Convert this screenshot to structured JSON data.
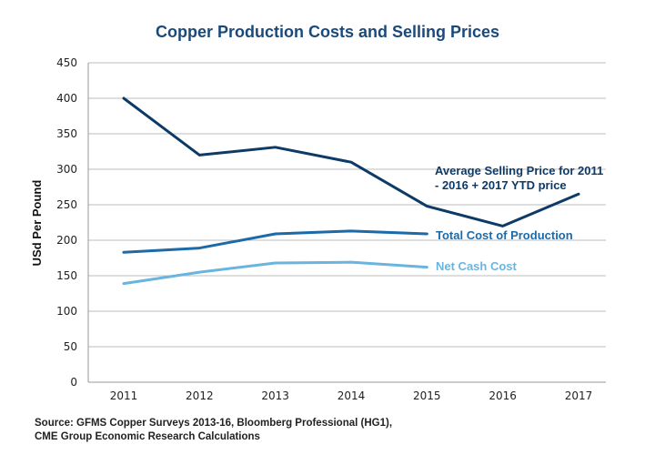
{
  "chart_data": {
    "type": "line",
    "title": "Copper Production Costs and Selling Prices",
    "xlabel": "",
    "ylabel": "USd Per Pound",
    "x": [
      "2011",
      "2012",
      "2013",
      "2014",
      "2015",
      "2016",
      "2017"
    ],
    "ylim": [
      0,
      450
    ],
    "yticks": [
      0,
      50,
      100,
      150,
      200,
      250,
      300,
      350,
      400,
      450
    ],
    "grid": true,
    "legend": "inline-labels",
    "series": [
      {
        "name": "Average Selling Price for 2011 - 2016 + 2017 YTD price",
        "label_lines": [
          "Average Selling Price for 2011",
          "- 2016 + 2017 YTD price"
        ],
        "color": "#0d3a66",
        "values": [
          400,
          320,
          331,
          310,
          248,
          220,
          265
        ]
      },
      {
        "name": "Total Cost of Production",
        "label_lines": [
          "Total Cost of Production"
        ],
        "color": "#1c6aa8",
        "values": [
          183,
          189,
          209,
          213,
          209,
          null,
          null
        ]
      },
      {
        "name": "Net Cash Cost",
        "label_lines": [
          "Net Cash Cost"
        ],
        "color": "#6ab4e0",
        "values": [
          139,
          155,
          168,
          169,
          162,
          null,
          null
        ]
      }
    ],
    "source_lines": [
      "Source: GFMS Copper Surveys 2013-16, Bloomberg Professional (HG1),",
      "CME Group Economic Research Calculations"
    ]
  },
  "colors": {
    "title": "#1b4a7a",
    "grid": "#bdbdbd",
    "axis": "#9a9a9a"
  }
}
